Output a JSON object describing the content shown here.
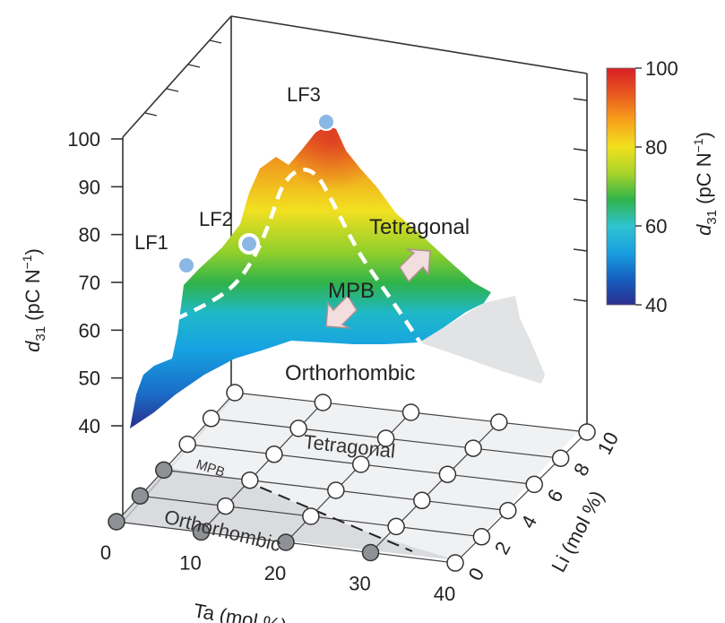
{
  "chart_data": {
    "type": "surface3d",
    "zlabel_main": "d",
    "zlabel_sub": "31",
    "zlabel_unit": " (pC N",
    "zlabel_sup": "−1",
    "zlabel_close": ")",
    "zticks": [
      "40",
      "50",
      "60",
      "70",
      "80",
      "90",
      "100"
    ],
    "xlabel": "Ta (mol %)",
    "xticks": [
      "0",
      "10",
      "20",
      "30",
      "40"
    ],
    "ylabel": "Li (mol %)",
    "yticks": [
      "0",
      "2",
      "4",
      "6",
      "8",
      "10"
    ],
    "zlim": [
      40,
      100
    ],
    "xlim": [
      0,
      40
    ],
    "ylim": [
      0,
      10
    ],
    "colorbar": {
      "range": [
        40,
        100
      ],
      "ticks": [
        "40",
        "60",
        "80",
        "100"
      ],
      "colors": [
        "#2a2f8f",
        "#1560c0",
        "#1aa0e0",
        "#2fc3d0",
        "#2fb34a",
        "#a8d42a",
        "#f2e01e",
        "#f7a21a",
        "#e85a20",
        "#d81f26"
      ]
    },
    "points": [
      {
        "label": "LF1",
        "d31": 70
      },
      {
        "label": "LF2",
        "d31": 78
      },
      {
        "label": "LF3",
        "d31": 98
      }
    ],
    "surface_labels": {
      "tetragonal": "Tetragonal",
      "mpb": "MPB",
      "orthorhombic": "Orthorhombic"
    },
    "base_labels": {
      "tetragonal": "Tetragonal",
      "mpb": "MPB",
      "orthorhombic": "Orthorhombic"
    }
  }
}
